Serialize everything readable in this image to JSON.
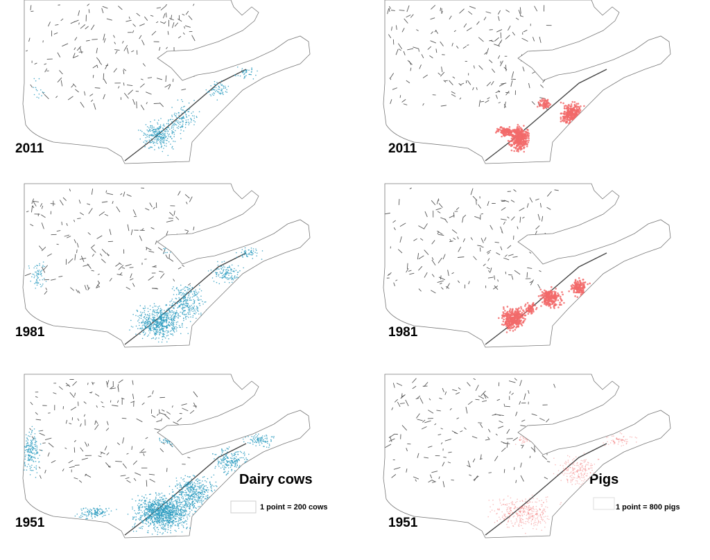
{
  "columns": [
    {
      "legend": {
        "title": "Dairy cows",
        "note": "1 point = 200 cows"
      },
      "panels": [
        {
          "year": "2011"
        },
        {
          "year": "1981"
        },
        {
          "year": "1951"
        }
      ]
    },
    {
      "legend": {
        "title": "Pigs",
        "note": "1 point = 800 pigs"
      },
      "panels": [
        {
          "year": "2011"
        },
        {
          "year": "1981"
        },
        {
          "year": "1951"
        }
      ]
    }
  ]
}
